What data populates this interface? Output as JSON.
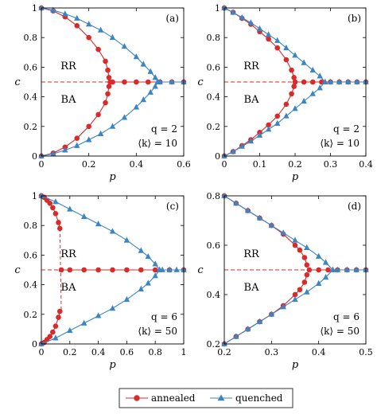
{
  "colors": {
    "annealed": "#d92b2b",
    "quenched": "#3a86c4",
    "threshold": "#d92b2b"
  },
  "legend": [
    {
      "label": "annealed",
      "marker": "circle",
      "color": "#d92b2b"
    },
    {
      "label": "quenched",
      "marker": "triangle",
      "color": "#3a86c4"
    }
  ],
  "chart_data": [
    {
      "type": "line",
      "panel": "(a)",
      "xlabel": "p",
      "ylabel": "c",
      "xlim": [
        0,
        0.6
      ],
      "ylim": [
        0,
        1
      ],
      "xticks": [
        "0",
        "0.2",
        "0.4",
        "0.6"
      ],
      "yticks": [
        "0",
        "0.2",
        "0.4",
        "0.6",
        "0.8",
        "1"
      ],
      "regions": [
        "RR",
        "BA"
      ],
      "annotation": [
        "q = 2",
        "⟨k⟩ = 10"
      ],
      "threshold_y": 0.5,
      "series": [
        {
          "name": "annealed",
          "branches": [
            {
              "x": [
                0,
                0.05,
                0.1,
                0.15,
                0.2,
                0.24,
                0.27,
                0.28,
                0.285
              ],
              "y": [
                1.0,
                0.98,
                0.94,
                0.88,
                0.8,
                0.72,
                0.64,
                0.58,
                0.53
              ]
            },
            {
              "x": [
                0,
                0.05,
                0.1,
                0.15,
                0.2,
                0.24,
                0.27,
                0.28,
                0.285
              ],
              "y": [
                0.0,
                0.02,
                0.06,
                0.12,
                0.2,
                0.28,
                0.36,
                0.42,
                0.47
              ]
            },
            {
              "x": [
                0.29,
                0.3,
                0.35,
                0.4,
                0.45,
                0.5,
                0.55,
                0.6
              ],
              "y": [
                0.5,
                0.5,
                0.5,
                0.5,
                0.5,
                0.5,
                0.5,
                0.5
              ]
            }
          ]
        },
        {
          "name": "quenched",
          "branches": [
            {
              "x": [
                0,
                0.05,
                0.1,
                0.15,
                0.2,
                0.25,
                0.3,
                0.35,
                0.4,
                0.43,
                0.46,
                0.48,
                0.49
              ],
              "y": [
                1.0,
                0.985,
                0.96,
                0.93,
                0.89,
                0.85,
                0.8,
                0.74,
                0.67,
                0.62,
                0.57,
                0.53,
                0.5
              ]
            },
            {
              "x": [
                0,
                0.05,
                0.1,
                0.15,
                0.2,
                0.25,
                0.3,
                0.35,
                0.4,
                0.43,
                0.46,
                0.48,
                0.49
              ],
              "y": [
                0.0,
                0.015,
                0.04,
                0.07,
                0.11,
                0.15,
                0.2,
                0.26,
                0.33,
                0.38,
                0.43,
                0.47,
                0.5
              ]
            },
            {
              "x": [
                0.5,
                0.55,
                0.6
              ],
              "y": [
                0.5,
                0.5,
                0.5
              ]
            }
          ]
        }
      ]
    },
    {
      "type": "line",
      "panel": "(b)",
      "xlabel": "p",
      "ylabel": "c",
      "xlim": [
        0,
        0.4
      ],
      "ylim": [
        0,
        1
      ],
      "xticks": [
        "0",
        "0.1",
        "0.2",
        "0.3",
        "0.4"
      ],
      "yticks": [
        "0",
        "0.2",
        "0.4",
        "0.6",
        "0.8",
        "1"
      ],
      "regions": [
        "RR",
        "BA"
      ],
      "annotation": [
        "q = 2",
        "⟨k⟩ = 10"
      ],
      "threshold_y": 0.5,
      "series": [
        {
          "name": "annealed",
          "branches": [
            {
              "x": [
                0,
                0.025,
                0.05,
                0.075,
                0.1,
                0.125,
                0.15,
                0.175,
                0.19,
                0.197
              ],
              "y": [
                1.0,
                0.97,
                0.93,
                0.89,
                0.84,
                0.79,
                0.73,
                0.65,
                0.58,
                0.53
              ]
            },
            {
              "x": [
                0,
                0.025,
                0.05,
                0.075,
                0.1,
                0.125,
                0.15,
                0.175,
                0.19,
                0.197
              ],
              "y": [
                0.0,
                0.03,
                0.07,
                0.11,
                0.16,
                0.21,
                0.27,
                0.35,
                0.42,
                0.47
              ]
            },
            {
              "x": [
                0.2,
                0.225,
                0.25,
                0.275,
                0.3,
                0.325,
                0.35,
                0.375,
                0.4
              ],
              "y": [
                0.5,
                0.5,
                0.5,
                0.5,
                0.5,
                0.5,
                0.5,
                0.5,
                0.5
              ]
            }
          ]
        },
        {
          "name": "quenched",
          "branches": [
            {
              "x": [
                0,
                0.025,
                0.05,
                0.075,
                0.1,
                0.125,
                0.15,
                0.175,
                0.2,
                0.225,
                0.25,
                0.27,
                0.285
              ],
              "y": [
                1.0,
                0.97,
                0.935,
                0.9,
                0.86,
                0.82,
                0.78,
                0.73,
                0.68,
                0.63,
                0.58,
                0.54,
                0.5
              ]
            },
            {
              "x": [
                0,
                0.025,
                0.05,
                0.075,
                0.1,
                0.125,
                0.15,
                0.175,
                0.2,
                0.225,
                0.25,
                0.27,
                0.285
              ],
              "y": [
                0.0,
                0.03,
                0.065,
                0.1,
                0.14,
                0.18,
                0.22,
                0.27,
                0.32,
                0.37,
                0.42,
                0.46,
                0.5
              ]
            },
            {
              "x": [
                0.3,
                0.325,
                0.35,
                0.375,
                0.4
              ],
              "y": [
                0.5,
                0.5,
                0.5,
                0.5,
                0.5
              ]
            }
          ]
        }
      ]
    },
    {
      "type": "line",
      "panel": "(c)",
      "xlabel": "p",
      "ylabel": "c",
      "xlim": [
        0,
        1
      ],
      "ylim": [
        0,
        1
      ],
      "xticks": [
        "0",
        "0.2",
        "0.4",
        "0.6",
        "0.8",
        "1"
      ],
      "yticks": [
        "0",
        "0.2",
        "0.4",
        "0.6",
        "0.8",
        "1"
      ],
      "regions": [
        "RR",
        "BA"
      ],
      "annotation": [
        "q = 6",
        "⟨k⟩ = 50"
      ],
      "threshold_y": 0.5,
      "dashed_transition": [
        0.13,
        0.14
      ],
      "series": [
        {
          "name": "annealed",
          "branches": [
            {
              "x": [
                0,
                0.02,
                0.04,
                0.06,
                0.08,
                0.1,
                0.12,
                0.13
              ],
              "y": [
                1.0,
                0.99,
                0.97,
                0.95,
                0.92,
                0.88,
                0.82,
                0.78
              ]
            },
            {
              "x": [
                0,
                0.02,
                0.04,
                0.06,
                0.08,
                0.1,
                0.12,
                0.13
              ],
              "y": [
                0.0,
                0.01,
                0.03,
                0.05,
                0.08,
                0.12,
                0.18,
                0.22
              ]
            },
            {
              "x": [
                0.14,
                0.2,
                0.3,
                0.4,
                0.5,
                0.6,
                0.7,
                0.8,
                0.9,
                1.0
              ],
              "y": [
                0.5,
                0.5,
                0.5,
                0.5,
                0.5,
                0.5,
                0.5,
                0.5,
                0.5,
                0.5
              ]
            }
          ]
        },
        {
          "name": "quenched",
          "branches": [
            {
              "x": [
                0,
                0.1,
                0.2,
                0.3,
                0.4,
                0.5,
                0.6,
                0.7,
                0.75,
                0.8,
                0.83
              ],
              "y": [
                1.0,
                0.96,
                0.91,
                0.86,
                0.81,
                0.76,
                0.7,
                0.63,
                0.59,
                0.54,
                0.5
              ]
            },
            {
              "x": [
                0,
                0.1,
                0.2,
                0.3,
                0.4,
                0.5,
                0.6,
                0.7,
                0.75,
                0.8,
                0.83
              ],
              "y": [
                0.0,
                0.04,
                0.09,
                0.14,
                0.19,
                0.24,
                0.3,
                0.37,
                0.41,
                0.46,
                0.5
              ]
            },
            {
              "x": [
                0.85,
                0.9,
                0.95,
                1.0
              ],
              "y": [
                0.5,
                0.5,
                0.5,
                0.5
              ]
            }
          ]
        }
      ]
    },
    {
      "type": "line",
      "panel": "(d)",
      "xlabel": "p",
      "ylabel": "c",
      "xlim": [
        0.2,
        0.5
      ],
      "ylim": [
        0.2,
        0.8
      ],
      "xticks": [
        "0.2",
        "0.3",
        "0.4",
        "0.5"
      ],
      "yticks": [
        "0.2",
        "0.4",
        "0.6",
        "0.8"
      ],
      "regions": [
        "RR",
        "BA"
      ],
      "annotation": [
        "q = 6",
        "⟨k⟩ = 50"
      ],
      "threshold_y": 0.5,
      "series": [
        {
          "name": "annealed",
          "branches": [
            {
              "x": [
                0.2,
                0.225,
                0.25,
                0.275,
                0.3,
                0.325,
                0.35,
                0.36,
                0.37,
                0.375
              ],
              "y": [
                0.8,
                0.77,
                0.74,
                0.71,
                0.68,
                0.645,
                0.6,
                0.58,
                0.55,
                0.52
              ]
            },
            {
              "x": [
                0.2,
                0.225,
                0.25,
                0.275,
                0.3,
                0.325,
                0.35,
                0.36,
                0.37,
                0.375
              ],
              "y": [
                0.2,
                0.23,
                0.26,
                0.29,
                0.32,
                0.355,
                0.4,
                0.42,
                0.45,
                0.48
              ]
            },
            {
              "x": [
                0.38,
                0.4,
                0.42,
                0.44,
                0.46,
                0.48,
                0.5
              ],
              "y": [
                0.5,
                0.5,
                0.5,
                0.5,
                0.5,
                0.5,
                0.5
              ]
            }
          ]
        },
        {
          "name": "quenched",
          "branches": [
            {
              "x": [
                0.2,
                0.225,
                0.25,
                0.275,
                0.3,
                0.325,
                0.35,
                0.375,
                0.4,
                0.415,
                0.43
              ],
              "y": [
                0.8,
                0.77,
                0.74,
                0.71,
                0.68,
                0.65,
                0.62,
                0.59,
                0.555,
                0.53,
                0.5
              ]
            },
            {
              "x": [
                0.2,
                0.225,
                0.25,
                0.275,
                0.3,
                0.325,
                0.35,
                0.375,
                0.4,
                0.415,
                0.43
              ],
              "y": [
                0.2,
                0.23,
                0.26,
                0.29,
                0.32,
                0.35,
                0.38,
                0.41,
                0.445,
                0.47,
                0.5
              ]
            },
            {
              "x": [
                0.44,
                0.46,
                0.48,
                0.5
              ],
              "y": [
                0.5,
                0.5,
                0.5,
                0.5
              ]
            }
          ]
        }
      ]
    }
  ]
}
